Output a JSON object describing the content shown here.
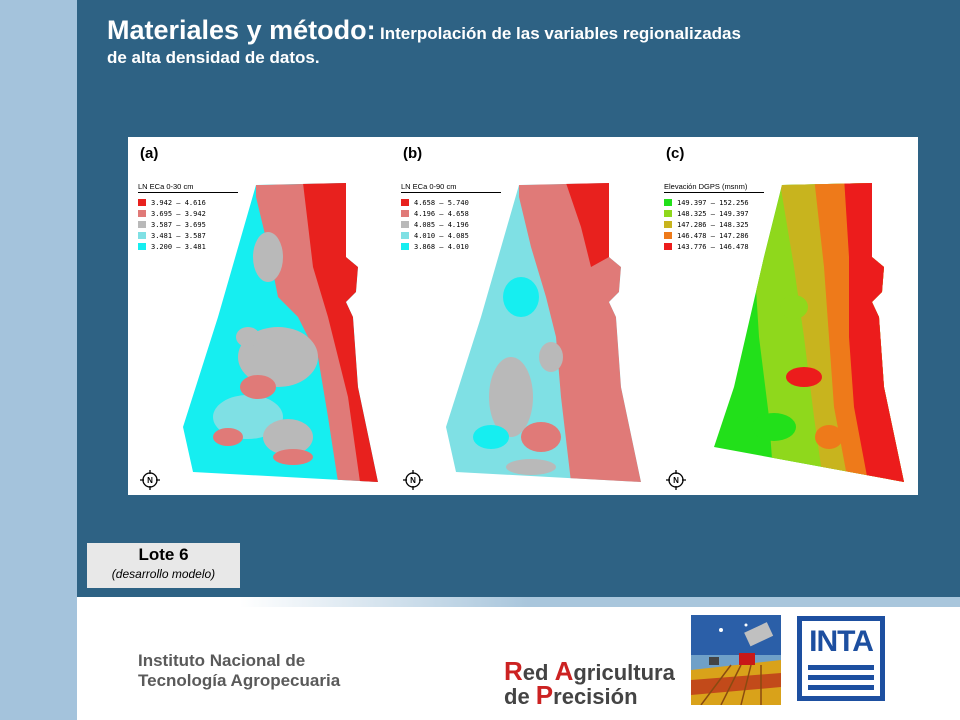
{
  "title": {
    "main": "Materiales y método:",
    "sub": "Interpolación de las variables regionalizadas",
    "line2": "de alta densidad de datos."
  },
  "panels": [
    {
      "label": "(a)",
      "legend_title": "LN ECa 0-30 cm",
      "legend": [
        {
          "range": "3.942 – 4.616",
          "color": "#e8211e"
        },
        {
          "range": "3.695 – 3.942",
          "color": "#e07a78"
        },
        {
          "range": "3.587 – 3.695",
          "color": "#b9b9b9"
        },
        {
          "range": "3.481 – 3.587",
          "color": "#7fe0e4"
        },
        {
          "range": "3.200 – 3.481",
          "color": "#16eef0"
        }
      ]
    },
    {
      "label": "(b)",
      "legend_title": "LN ECa 0-90 cm",
      "legend": [
        {
          "range": "4.658 – 5.740",
          "color": "#e8211e"
        },
        {
          "range": "4.196 – 4.658",
          "color": "#e07a78"
        },
        {
          "range": "4.085 – 4.196",
          "color": "#b9b9b9"
        },
        {
          "range": "4.010 – 4.085",
          "color": "#7fe0e4"
        },
        {
          "range": "3.868 – 4.010",
          "color": "#16eef0"
        }
      ]
    },
    {
      "label": "(c)",
      "legend_title": "Elevación DGPS (msnm)",
      "legend": [
        {
          "range": "149.397 – 152.256",
          "color": "#22e01a"
        },
        {
          "range": "148.325 – 149.397",
          "color": "#8fd81c"
        },
        {
          "range": "147.286 – 148.325",
          "color": "#c8b41e"
        },
        {
          "range": "146.478 – 147.286",
          "color": "#ee7a1a"
        },
        {
          "range": "143.776 – 146.478",
          "color": "#ec1c1c"
        }
      ]
    }
  ],
  "lote": {
    "title": "Lote 6",
    "subtitle": "(desarrollo modelo)"
  },
  "institute": {
    "line1": "Instituto Nacional de",
    "line2": "Tecnología Agropecuaria"
  },
  "rap": {
    "line1_cap1": "R",
    "line1_rest1": "ed ",
    "line1_cap2": "A",
    "line1_rest2": "gricultura",
    "line2_pre": "de ",
    "line2_cap": "P",
    "line2_rest": "recisión"
  },
  "inta": {
    "word": "INTA"
  },
  "north_label": "N"
}
